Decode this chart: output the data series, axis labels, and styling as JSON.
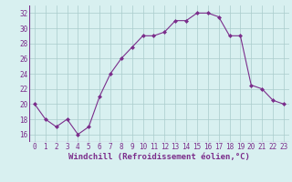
{
  "x": [
    0,
    1,
    2,
    3,
    4,
    5,
    6,
    7,
    8,
    9,
    10,
    11,
    12,
    13,
    14,
    15,
    16,
    17,
    18,
    19,
    20,
    21,
    22,
    23
  ],
  "y": [
    20,
    18,
    17,
    18,
    16,
    17,
    21,
    24,
    26,
    27.5,
    29,
    29,
    29.5,
    31,
    31,
    32,
    32,
    31.5,
    29,
    29,
    22.5,
    22,
    20.5,
    20
  ],
  "line_color": "#7B2D8B",
  "marker": "D",
  "marker_size": 2,
  "bg_color": "#d8f0f0",
  "grid_color": "#aacccc",
  "xlabel": "Windchill (Refroidissement éolien,°C)",
  "xlabel_fontsize": 6.5,
  "ylim": [
    15,
    33
  ],
  "xlim": [
    -0.5,
    23.5
  ],
  "yticks": [
    16,
    18,
    20,
    22,
    24,
    26,
    28,
    30,
    32
  ],
  "xticks": [
    0,
    1,
    2,
    3,
    4,
    5,
    6,
    7,
    8,
    9,
    10,
    11,
    12,
    13,
    14,
    15,
    16,
    17,
    18,
    19,
    20,
    21,
    22,
    23
  ],
  "tick_fontsize": 5.5,
  "linewidth": 0.8
}
